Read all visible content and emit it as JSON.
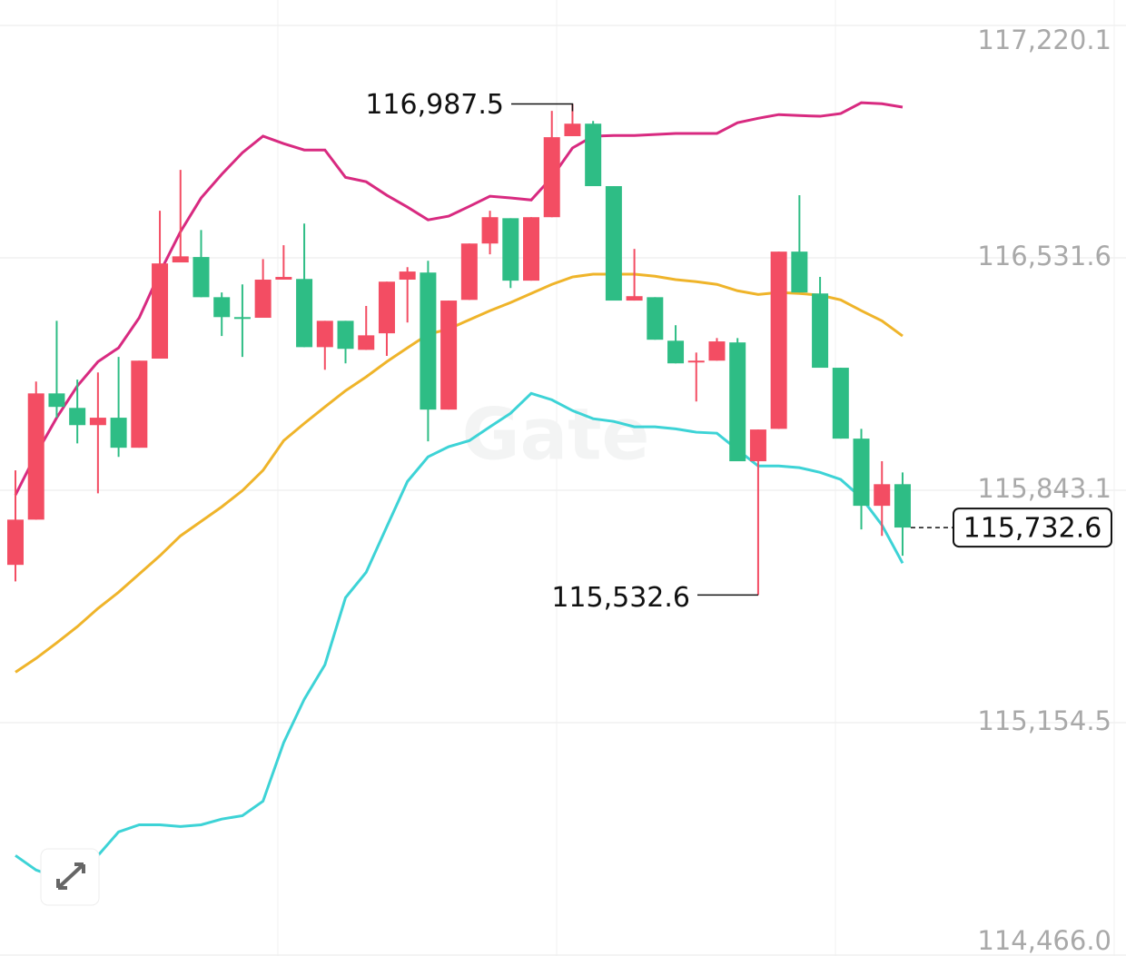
{
  "chart_data": {
    "type": "candlestick",
    "watermark": "Gate",
    "ylim": [
      114466.0,
      117220.1
    ],
    "yticks": [
      {
        "value": 117220.1,
        "label": "117,220.1"
      },
      {
        "value": 116531.6,
        "label": "116,531.6"
      },
      {
        "value": 115843.1,
        "label": "115,843.1"
      },
      {
        "value": 115154.5,
        "label": "115,154.5"
      },
      {
        "value": 114466.0,
        "label": "114,466.0"
      }
    ],
    "grid": true,
    "up_color": "#f34d63",
    "down_color": "#2ebd85",
    "open": [
      115622,
      115756,
      116130,
      116087,
      116036,
      116058,
      115969,
      116233,
      116518,
      116534,
      116415,
      116356,
      116354,
      116467,
      116469,
      116267,
      116345,
      116259,
      116308,
      116467,
      116488,
      116082,
      116407,
      116574,
      116649,
      116464,
      116652,
      116892,
      116929,
      116744,
      116405,
      116415,
      116286,
      116222,
      116227,
      116281,
      115929,
      116025,
      116550,
      116426,
      116206,
      115996,
      115797,
      115861
    ],
    "high": [
      115902,
      116165,
      116345,
      116171,
      116192,
      116238,
      116227,
      116671,
      116792,
      116614,
      116429,
      116453,
      116528,
      116569,
      116633,
      116345,
      116345,
      116389,
      116461,
      116504,
      116523,
      116405,
      116574,
      116671,
      116649,
      116652,
      116967,
      116987.5,
      116937,
      116744,
      116558,
      116415,
      116332,
      116251,
      116294,
      116294,
      116023,
      116550,
      116717,
      116475,
      116206,
      116025,
      115929,
      115896
    ],
    "low": [
      115573,
      115756,
      116058,
      115982,
      115834,
      115942,
      115969,
      116233,
      116518,
      116415,
      116300,
      116238,
      116354,
      116467,
      116267,
      116200,
      116219,
      116259,
      116241,
      116340,
      115988,
      116082,
      116407,
      116542,
      116442,
      116464,
      116652,
      116892,
      116744,
      116405,
      116405,
      116289,
      116219,
      116106,
      116227,
      115929,
      115532.6,
      116025,
      116429,
      116206,
      115996,
      115727,
      115708,
      115649
    ],
    "close": [
      115756,
      116130,
      116090,
      116036,
      116058,
      115969,
      116227,
      116515,
      116536,
      116415,
      116356,
      116351,
      116467,
      116475,
      116267,
      116345,
      116262,
      116302,
      116461,
      116491,
      116082,
      116405,
      116574,
      116652,
      116464,
      116652,
      116889,
      116929,
      116744,
      116405,
      116418,
      116289,
      116219,
      116227,
      116284,
      115929,
      116023,
      116550,
      116429,
      116206,
      115996,
      115797,
      115861,
      115732.6
    ],
    "bands": [
      {
        "color": "#d82a80",
        "values": [
          115829,
          115950,
          116058,
          116152,
          116224,
          116265,
          116354,
          116488,
          116609,
          116709,
          116779,
          116843,
          116892,
          116870,
          116851,
          116851,
          116770,
          116757,
          116717,
          116682,
          116644,
          116655,
          116684,
          116714,
          116709,
          116703,
          116770,
          116857,
          116892,
          116894,
          116894,
          116897,
          116900,
          116900,
          116900,
          116932,
          116945,
          116956,
          116953,
          116951,
          116959,
          116991,
          116988,
          116978
        ]
      },
      {
        "color": "#efb42a",
        "values": [
          115304,
          115345,
          115391,
          115439,
          115493,
          115541,
          115595,
          115649,
          115708,
          115751,
          115794,
          115842,
          115902,
          115990,
          116041,
          116090,
          116138,
          116179,
          116224,
          116265,
          116305,
          116321,
          116348,
          116375,
          116399,
          116426,
          116453,
          116475,
          116483,
          116483,
          116483,
          116477,
          116467,
          116461,
          116453,
          116434,
          116423,
          116429,
          116426,
          116421,
          116407,
          116375,
          116345,
          116300
        ]
      },
      {
        "color": "#3dd3d6",
        "values": [
          114761,
          114718,
          114696,
          114721,
          114761,
          114831,
          114852,
          114852,
          114847,
          114852,
          114869,
          114879,
          114922,
          115095,
          115224,
          115326,
          115525,
          115600,
          115735,
          115869,
          115942,
          115972,
          115990,
          116031,
          116071,
          116130,
          116111,
          116079,
          116055,
          116047,
          116031,
          116031,
          116025,
          116015,
          116012,
          115963,
          115915,
          115915,
          115910,
          115896,
          115875,
          115821,
          115740,
          115627
        ]
      }
    ],
    "high_label": {
      "value": 116987.5,
      "label": "116,987.5"
    },
    "low_label": {
      "value": 115532.6,
      "label": "115,532.6"
    },
    "last_price": {
      "value": 115732.6,
      "label": "115,732.6"
    }
  }
}
